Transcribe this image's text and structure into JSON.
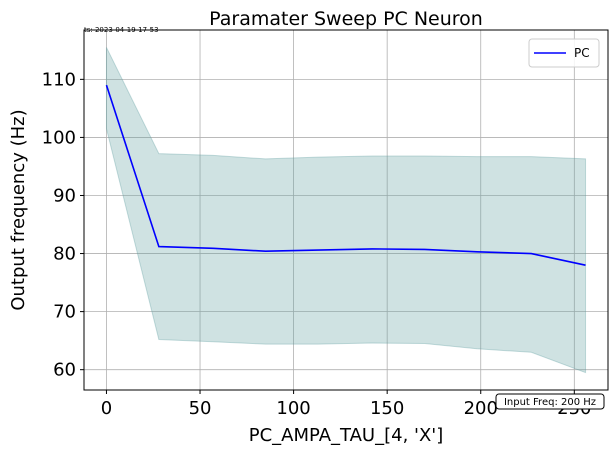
{
  "chart_data": {
    "type": "line",
    "title": "Paramater Sweep PC Neuron",
    "timestamp": "ts: 2023-04-19-17-53",
    "xlabel": "PC_AMPA_TAU_[4, 'X']",
    "ylabel": "Output frequency (Hz)",
    "xlim": [
      -12,
      268
    ],
    "ylim": [
      56.5,
      118.5
    ],
    "xticks": [
      0,
      50,
      100,
      150,
      200,
      250
    ],
    "yticks": [
      60,
      70,
      80,
      90,
      100,
      110
    ],
    "grid": true,
    "legend_position": "top-right",
    "annotation": "Input Freq: 200 Hz",
    "series": [
      {
        "name": "PC",
        "color": "#0000ff",
        "x": [
          0,
          28,
          57,
          85,
          113,
          142,
          170,
          198,
          227,
          256
        ],
        "y": [
          109,
          81.2,
          80.9,
          80.4,
          80.6,
          80.8,
          80.7,
          80.3,
          80.0,
          78.0
        ],
        "band_upper": [
          115.5,
          97.2,
          96.9,
          96.3,
          96.6,
          96.8,
          96.8,
          96.7,
          96.7,
          96.3
        ],
        "band_lower": [
          101.5,
          65.2,
          64.8,
          64.4,
          64.4,
          64.6,
          64.5,
          63.6,
          63.0,
          59.5
        ],
        "band_color": "#5f9ea0"
      }
    ]
  }
}
